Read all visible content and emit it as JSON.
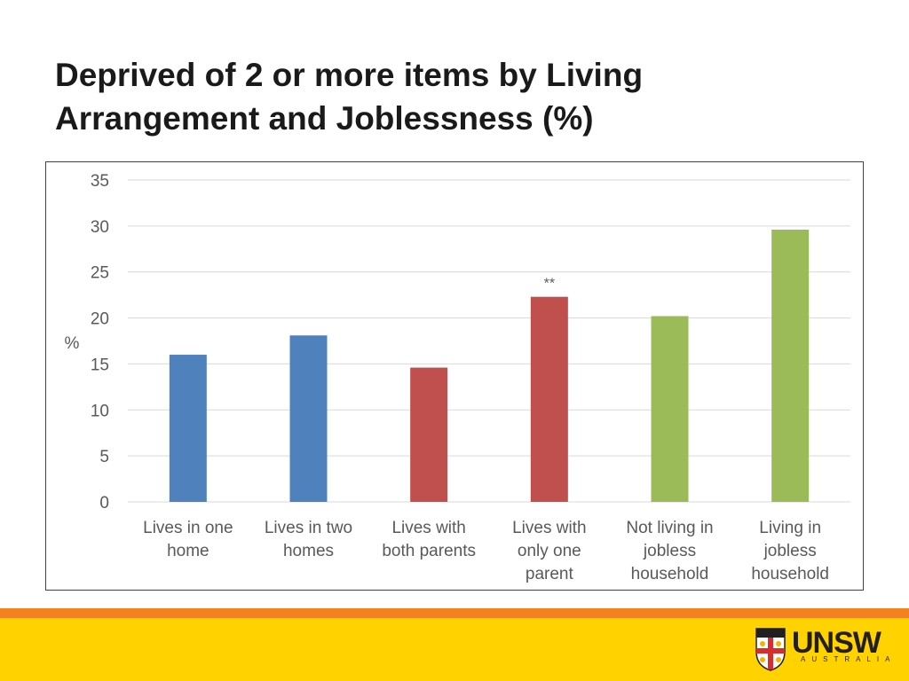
{
  "slide": {
    "title_lines": [
      "Deprived of 2 or more items by Living",
      "Arrangement and Joblessness (%)"
    ]
  },
  "colors": {
    "blue": "#4f81bd",
    "red": "#c0504d",
    "green": "#9bbb59",
    "gridline": "#d9d9d9",
    "axis_text": "#595959",
    "band_orange": "#f48120",
    "band_yellow": "#ffd200"
  },
  "chart_data": {
    "type": "bar",
    "title": "",
    "xlabel": "",
    "ylabel": "%",
    "ylim": [
      0,
      35
    ],
    "yticks": [
      0,
      5,
      10,
      15,
      20,
      25,
      30,
      35
    ],
    "grid": true,
    "legend": "none",
    "categories": [
      [
        "Lives in one",
        "home"
      ],
      [
        "Lives in two",
        "homes"
      ],
      [
        "Lives with",
        "both parents"
      ],
      [
        "Lives with",
        "only one",
        "parent"
      ],
      [
        "Not living in",
        "jobless",
        "household"
      ],
      [
        "Living in",
        "jobless",
        "household"
      ]
    ],
    "values": [
      16,
      18.1,
      14.6,
      22.3,
      20.2,
      29.6
    ],
    "bar_colors": [
      "#4f81bd",
      "#4f81bd",
      "#c0504d",
      "#c0504d",
      "#9bbb59",
      "#9bbb59"
    ],
    "annotations": [
      {
        "category_index": 3,
        "text": "**"
      }
    ]
  },
  "logo": {
    "name": "UNSW",
    "subtitle": "AUSTRALIA",
    "icon": "unsw-crest-icon"
  }
}
